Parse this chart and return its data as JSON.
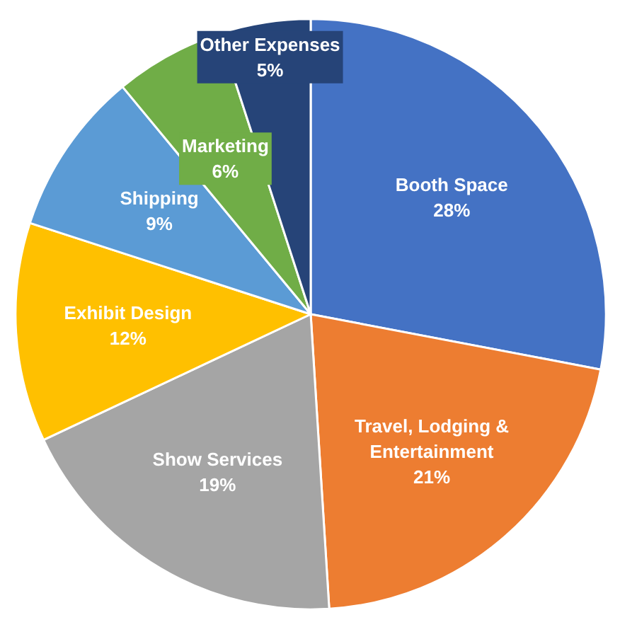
{
  "chart_data": {
    "type": "pie",
    "categories": [
      "Booth Space",
      "Travel, Lodging & Entertainment",
      "Show Services",
      "Exhibit Design",
      "Shipping",
      "Marketing",
      "Other Expenses"
    ],
    "values": [
      28,
      21,
      19,
      12,
      9,
      6,
      5
    ],
    "value_labels": [
      "28%",
      "21%",
      "19%",
      "12%",
      "9%",
      "6%",
      "5%"
    ],
    "colors": [
      "#4472c4",
      "#ed7d31",
      "#a5a5a5",
      "#ffc000",
      "#5b9bd5",
      "#70ad47",
      "#264478"
    ]
  }
}
